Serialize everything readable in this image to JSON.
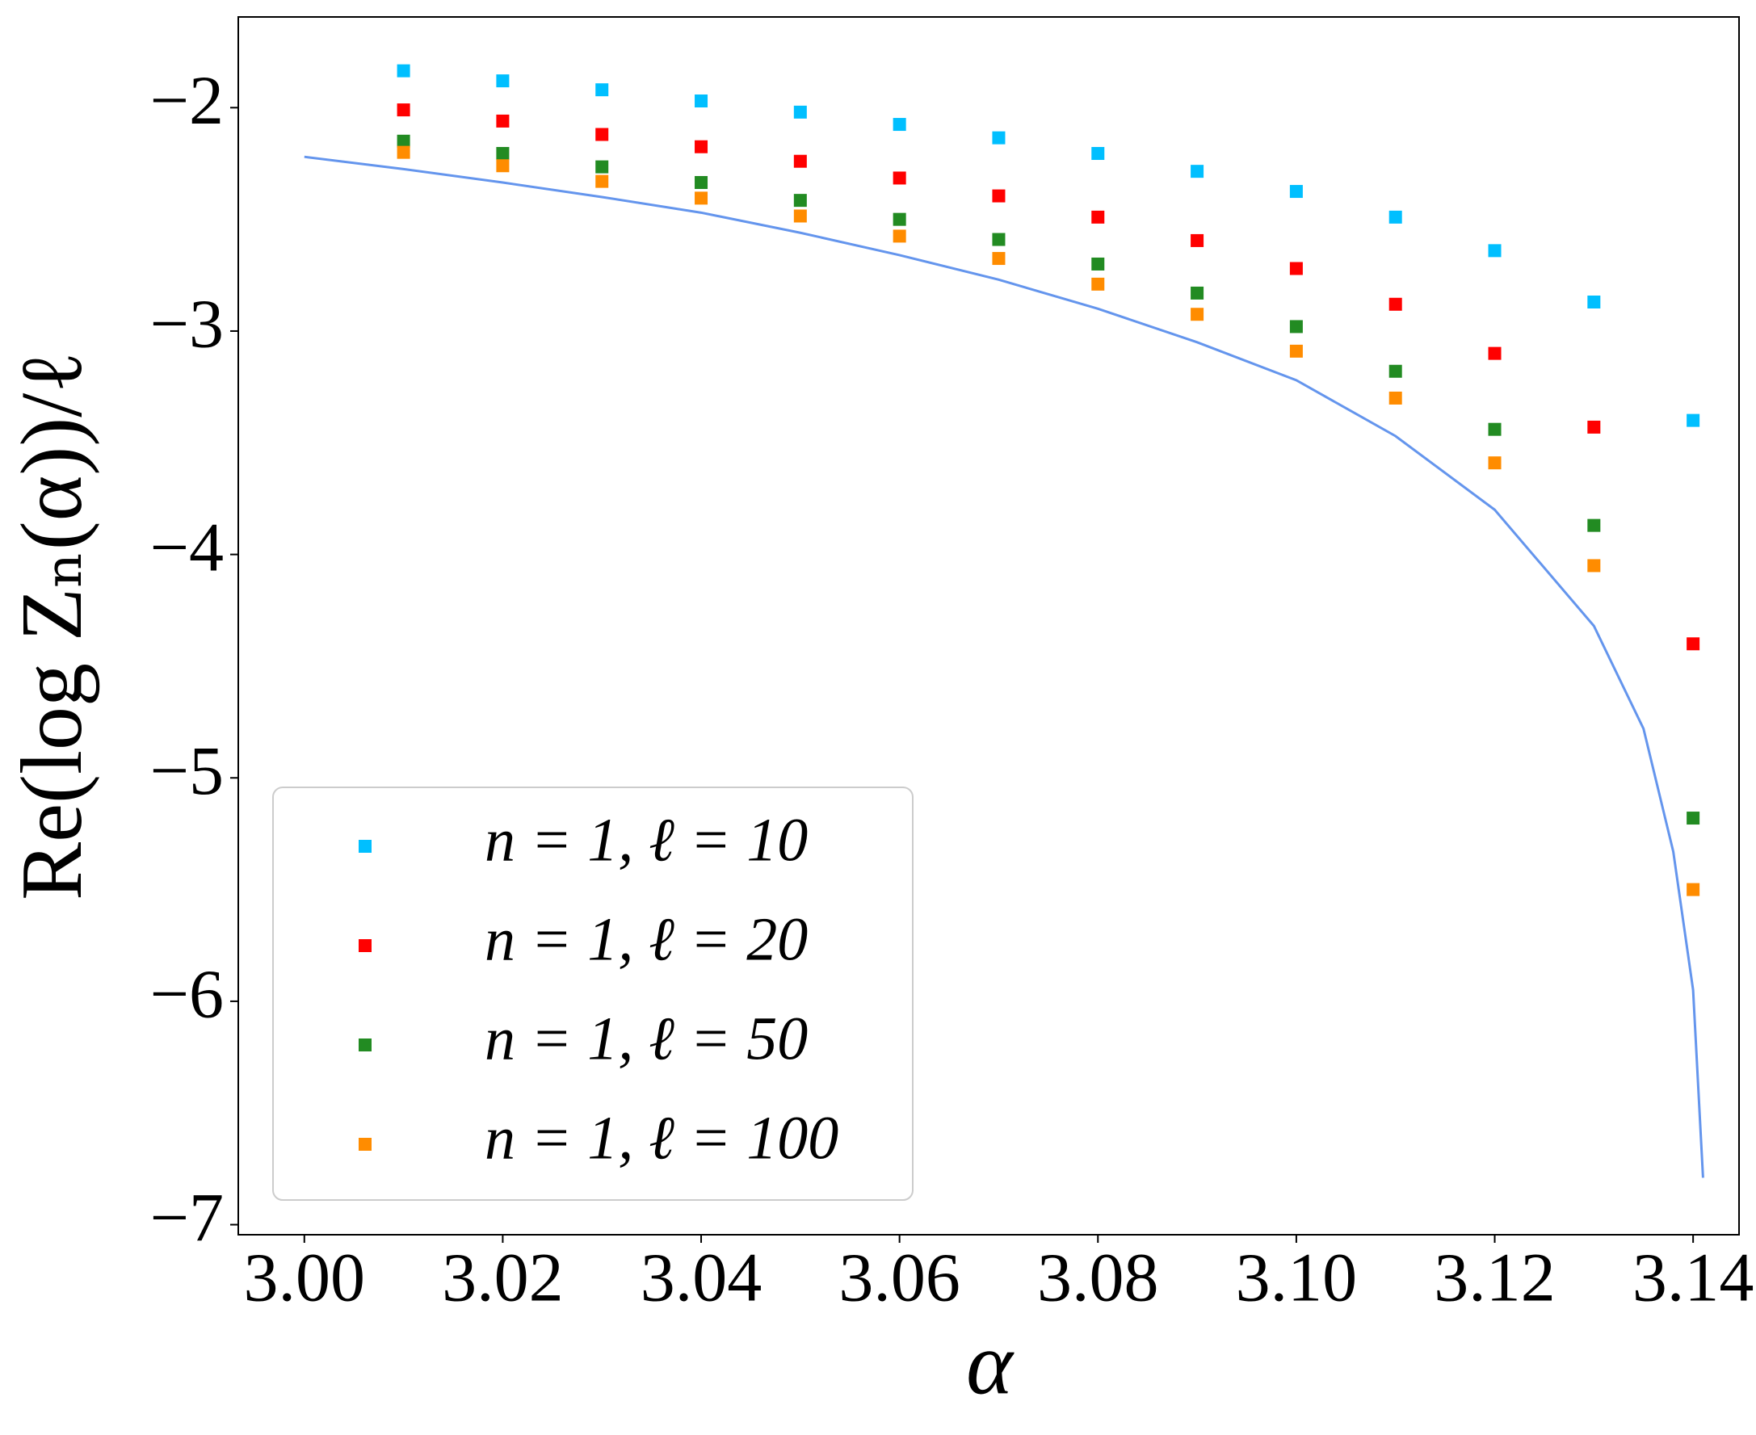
{
  "chart_data": {
    "type": "scatter",
    "xlabel": "α",
    "ylabel": "Re(log Zₙ(α))/ℓ",
    "xlim": [
      2.99334,
      3.14463
    ],
    "ylim": [
      -7.045,
      -1.594
    ],
    "xticks": [
      {
        "value": 3,
        "label": "3.00"
      },
      3.02,
      3.04,
      3.06,
      3.08,
      {
        "value": 3.1,
        "label": "3.10"
      },
      3.12,
      3.14
    ],
    "yticks": [
      {
        "value": -2,
        "label": "−2"
      },
      {
        "value": -3,
        "label": "−3"
      },
      {
        "value": -4,
        "label": "−4"
      },
      {
        "value": -5,
        "label": "−5"
      },
      {
        "value": -6,
        "label": "−6"
      },
      {
        "value": -7,
        "label": "−7"
      }
    ],
    "legend": "lower left",
    "series": [
      {
        "name": "n = 1, ℓ = 10",
        "color": "#00bfff",
        "mode": "markers",
        "x": [
          3.01,
          3.02,
          3.03,
          3.04,
          3.05,
          3.06,
          3.07,
          3.08,
          3.09,
          3.1,
          3.11,
          3.12,
          3.13,
          3.14
        ],
        "values": [
          -1.835,
          -1.88,
          -1.92,
          -1.97,
          -2.02,
          -2.075,
          -2.135,
          -2.205,
          -2.285,
          -2.375,
          -2.49,
          -2.64,
          -2.87,
          -3.4
        ]
      },
      {
        "name": "n = 1, ℓ = 20",
        "color": "#ff0000",
        "mode": "markers",
        "x": [
          3.01,
          3.02,
          3.03,
          3.04,
          3.05,
          3.06,
          3.07,
          3.08,
          3.09,
          3.1,
          3.11,
          3.12,
          3.13,
          3.14
        ],
        "values": [
          -2.01,
          -2.06,
          -2.12,
          -2.175,
          -2.24,
          -2.315,
          -2.395,
          -2.49,
          -2.595,
          -2.72,
          -2.88,
          -3.1,
          -3.43,
          -4.4
        ]
      },
      {
        "name": "n = 1, ℓ = 50",
        "color": "#228b22",
        "mode": "markers",
        "x": [
          3.01,
          3.02,
          3.03,
          3.04,
          3.05,
          3.06,
          3.07,
          3.08,
          3.09,
          3.1,
          3.11,
          3.12,
          3.13,
          3.14
        ],
        "values": [
          -2.15,
          -2.205,
          -2.265,
          -2.335,
          -2.415,
          -2.5,
          -2.59,
          -2.7,
          -2.83,
          -2.98,
          -3.18,
          -3.44,
          -3.87,
          -5.18
        ]
      },
      {
        "name": "n = 1, ℓ = 100",
        "color": "#ff8c00",
        "mode": "markers",
        "x": [
          3.01,
          3.02,
          3.03,
          3.04,
          3.05,
          3.06,
          3.07,
          3.08,
          3.09,
          3.1,
          3.11,
          3.12,
          3.13,
          3.14
        ],
        "values": [
          -2.2,
          -2.26,
          -2.33,
          -2.405,
          -2.485,
          -2.575,
          -2.675,
          -2.79,
          -2.925,
          -3.09,
          -3.3,
          -3.59,
          -4.05,
          -5.5
        ]
      },
      {
        "color": "#6495ed",
        "mode": "line",
        "x": [
          3.0,
          3.01,
          3.02,
          3.03,
          3.04,
          3.05,
          3.06,
          3.07,
          3.08,
          3.09,
          3.1,
          3.11,
          3.12,
          3.13,
          3.135,
          3.138,
          3.14,
          3.141
        ],
        "values": [
          -2.22,
          -2.275,
          -2.335,
          -2.4,
          -2.47,
          -2.56,
          -2.66,
          -2.77,
          -2.9,
          -3.05,
          -3.22,
          -3.47,
          -3.8,
          -4.32,
          -4.78,
          -5.33,
          -5.95,
          -6.79
        ]
      }
    ]
  }
}
